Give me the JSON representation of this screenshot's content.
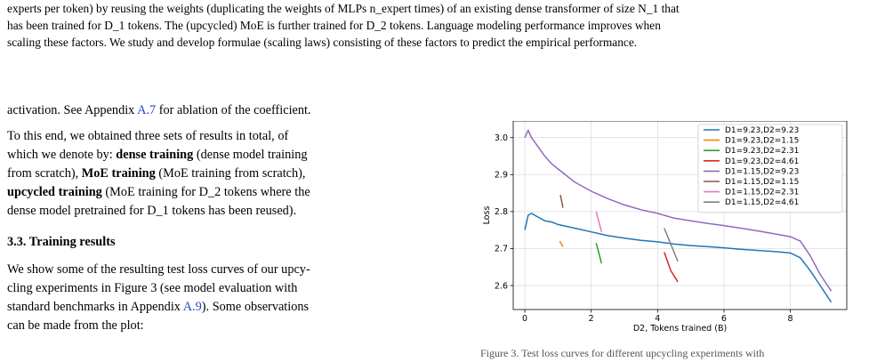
{
  "caption": {
    "line1": "experts per token) by reusing the weights (duplicating the weights of MLPs n_expert times) of an existing dense transformer of size N_1 that",
    "line2": "has been trained for D_1 tokens. The (upcycled) MoE is further trained for D_2 tokens. Language modeling performance improves when",
    "line3": "scaling these factors. We study and develop formulae (scaling laws) consisting of these factors to predict the empirical performance."
  },
  "body": {
    "p1_a": "activation. See Appendix ",
    "p1_link": "A.7",
    "p1_b": " for ablation of the coefficient.",
    "p2_l1": "To this end, we obtained three sets of results in total, of",
    "p2_l2_a": "which we denote by: ",
    "p2_l2_b": "dense training",
    "p2_l2_c": " (dense model training",
    "p2_l3_a": "from scratch), ",
    "p2_l3_b": "MoE training",
    "p2_l3_c": " (MoE training from scratch),",
    "p2_l4_a": "upcycled training",
    "p2_l4_b": " (MoE training for D_2 tokens where the",
    "p2_l5": "dense model pretrained for D_1 tokens has been reused).",
    "heading": "3.3. Training results",
    "p3_l1": "We show some of the resulting test loss curves of our upcy-",
    "p3_l2": "cling experiments in Figure 3 (see model evaluation with",
    "p3_l3_a": "standard benchmarks in Appendix ",
    "p3_l3_link": "A.9",
    "p3_l3_b": "). Some observations",
    "p3_l4": "can be made from the plot:"
  },
  "figure_caption": "Figure 3. Test loss curves for different upcycling experiments with",
  "chart_data": {
    "type": "line",
    "xlabel": "D2, Tokens trained (B)",
    "ylabel": "Loss",
    "xlim": [
      -0.35,
      9.7
    ],
    "ylim": [
      2.535,
      3.045
    ],
    "xticks": [
      0,
      2,
      4,
      6,
      8
    ],
    "yticks": [
      2.6,
      2.7,
      2.8,
      2.9,
      3.0
    ],
    "grid": true,
    "legend_position": "top-right",
    "series": [
      {
        "name": "D1=9.23,D2=9.23",
        "color": "#1f77b4",
        "x": [
          0.0,
          0.1,
          0.2,
          0.4,
          0.6,
          0.8,
          1.0,
          1.5,
          2.0,
          2.5,
          3.0,
          3.5,
          4.0,
          4.5,
          5.0,
          5.5,
          6.0,
          6.5,
          7.0,
          7.5,
          8.0,
          8.3,
          8.6,
          8.9,
          9.23
        ],
        "y": [
          2.75,
          2.79,
          2.795,
          2.785,
          2.775,
          2.772,
          2.765,
          2.755,
          2.745,
          2.735,
          2.728,
          2.722,
          2.718,
          2.712,
          2.708,
          2.705,
          2.702,
          2.698,
          2.695,
          2.692,
          2.688,
          2.675,
          2.64,
          2.6,
          2.555
        ]
      },
      {
        "name": "D1=9.23,D2=1.15",
        "color": "#ff7f0e",
        "x": [
          1.05,
          1.15
        ],
        "y": [
          2.72,
          2.705
        ]
      },
      {
        "name": "D1=9.23,D2=2.31",
        "color": "#2ca02c",
        "x": [
          2.15,
          2.31
        ],
        "y": [
          2.715,
          2.66
        ]
      },
      {
        "name": "D1=9.23,D2=4.61",
        "color": "#d62728",
        "x": [
          4.2,
          4.4,
          4.61
        ],
        "y": [
          2.69,
          2.64,
          2.61
        ]
      },
      {
        "name": "D1=1.15,D2=9.23",
        "color": "#9467bd",
        "x": [
          0.0,
          0.1,
          0.2,
          0.4,
          0.6,
          0.8,
          1.0,
          1.5,
          2.0,
          2.5,
          3.0,
          3.5,
          4.0,
          4.5,
          5.0,
          5.5,
          6.0,
          6.5,
          7.0,
          7.5,
          8.0,
          8.3,
          8.6,
          8.9,
          9.23
        ],
        "y": [
          3.0,
          3.02,
          3.0,
          2.975,
          2.95,
          2.93,
          2.915,
          2.88,
          2.855,
          2.835,
          2.818,
          2.805,
          2.795,
          2.782,
          2.775,
          2.768,
          2.762,
          2.755,
          2.748,
          2.74,
          2.732,
          2.72,
          2.68,
          2.63,
          2.585
        ]
      },
      {
        "name": "D1=1.15,D2=1.15",
        "color": "#8c564b",
        "x": [
          1.07,
          1.15
        ],
        "y": [
          2.845,
          2.81
        ]
      },
      {
        "name": "D1=1.15,D2=2.31",
        "color": "#e377c2",
        "x": [
          2.15,
          2.31
        ],
        "y": [
          2.8,
          2.745
        ]
      },
      {
        "name": "D1=1.15,D2=4.61",
        "color": "#7f7f7f",
        "x": [
          4.2,
          4.61
        ],
        "y": [
          2.755,
          2.665
        ]
      }
    ]
  }
}
